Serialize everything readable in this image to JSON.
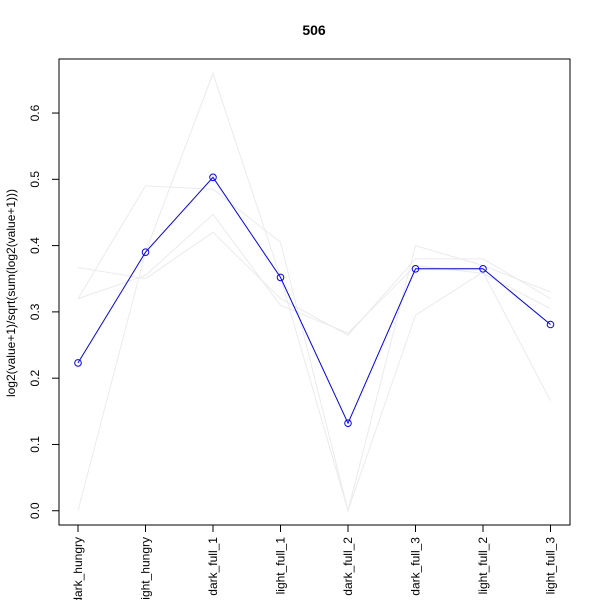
{
  "chart_data": {
    "type": "line",
    "title": "506",
    "xlabel": "",
    "ylabel": "log2(value+1)/sqrt(sum(log2(value+1)))",
    "categories": [
      "dark_hungry",
      "light_hungry",
      "dark_full_1",
      "light_full_1",
      "dark_full_2",
      "dark_full_3",
      "light_full_2",
      "light_full_3"
    ],
    "tick_labels": [
      "dark_hungry",
      "light_hungry",
      "dark_full_1",
      "light_full_1",
      "dark_full_2",
      "dark_full_3",
      "light_full_2",
      "light_full_3"
    ],
    "ylim": [
      -0.02,
      0.68
    ],
    "yticks": [
      0.0,
      0.1,
      0.2,
      0.3,
      0.4,
      0.5,
      0.6
    ],
    "ytick_labels": [
      "0.0",
      "0.1",
      "0.2",
      "0.3",
      "0.4",
      "0.5",
      "0.6"
    ],
    "grid": false,
    "legend": "none",
    "highlight_color": "#0000ff",
    "background_color": "#ebebeb",
    "highlight": {
      "values": [
        0.223,
        0.39,
        0.503,
        0.352,
        0.132,
        0.365,
        0.365,
        0.281
      ]
    },
    "background_series": [
      {
        "values": [
          0.0,
          0.39,
          0.66,
          0.352,
          0.0,
          0.295,
          0.36,
          0.166
        ]
      },
      {
        "values": [
          0.32,
          0.49,
          0.485,
          0.405,
          0.0,
          0.4,
          0.37,
          0.33
        ]
      },
      {
        "values": [
          0.367,
          0.35,
          0.42,
          0.32,
          0.265,
          0.38,
          0.38,
          0.32
        ]
      },
      {
        "values": [
          0.32,
          0.355,
          0.447,
          0.31,
          0.268,
          0.37,
          0.358,
          0.305
        ]
      },
      {
        "values": [
          0.223,
          0.39,
          0.503,
          0.352,
          0.132,
          0.365,
          0.365,
          0.281
        ]
      }
    ]
  }
}
